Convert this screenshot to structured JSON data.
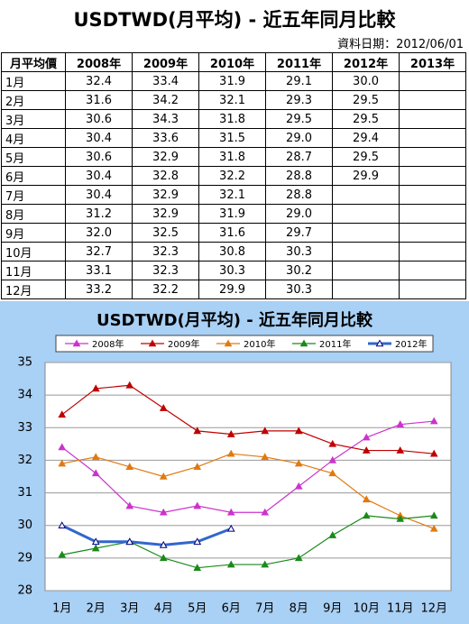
{
  "header": {
    "title": "USDTWD(月平均) - 近五年同月比較",
    "date": "資料日期：2012/06/01"
  },
  "table": {
    "columns": [
      "月平均價",
      "2008年",
      "2009年",
      "2010年",
      "2011年",
      "2012年",
      "2013年"
    ],
    "rows": [
      [
        "1月",
        "32.4",
        "33.4",
        "31.9",
        "29.1",
        "30.0",
        null
      ],
      [
        "2月",
        "31.6",
        "34.2",
        "32.1",
        "29.3",
        "29.5",
        null
      ],
      [
        "3月",
        "30.6",
        "34.3",
        "31.8",
        "29.5",
        "29.5",
        null
      ],
      [
        "4月",
        "30.4",
        "33.6",
        "31.5",
        "29.0",
        "29.4",
        null
      ],
      [
        "5月",
        "30.6",
        "32.9",
        "31.8",
        "28.7",
        "29.5",
        null
      ],
      [
        "6月",
        "30.4",
        "32.8",
        "32.2",
        "28.8",
        "29.9",
        null
      ],
      [
        "7月",
        "30.4",
        "32.9",
        "32.1",
        "28.8",
        null,
        null
      ],
      [
        "8月",
        "31.2",
        "32.9",
        "31.9",
        "29.0",
        null,
        null
      ],
      [
        "9月",
        "32.0",
        "32.5",
        "31.6",
        "29.7",
        null,
        null
      ],
      [
        "10月",
        "32.7",
        "32.3",
        "30.8",
        "30.3",
        null,
        null
      ],
      [
        "11月",
        "33.1",
        "32.3",
        "30.3",
        "30.2",
        null,
        null
      ],
      [
        "12月",
        "33.2",
        "32.2",
        "29.9",
        "30.3",
        null,
        null
      ]
    ]
  },
  "chart_data": {
    "type": "line",
    "title": "USDTWD(月平均) - 近五年同月比較",
    "categories": [
      "1月",
      "2月",
      "3月",
      "4月",
      "5月",
      "6月",
      "7月",
      "8月",
      "9月",
      "10月",
      "11月",
      "12月"
    ],
    "ylim": [
      28,
      35
    ],
    "yticks": [
      28,
      29,
      30,
      31,
      32,
      33,
      34,
      35
    ],
    "grid": true,
    "legend": "top",
    "series": [
      {
        "name": "2008年",
        "color": "#cc33cc",
        "values": [
          32.4,
          31.6,
          30.6,
          30.4,
          30.6,
          30.4,
          30.4,
          31.2,
          32.0,
          32.7,
          33.1,
          33.2
        ]
      },
      {
        "name": "2009年",
        "color": "#c00000",
        "values": [
          33.4,
          34.2,
          34.3,
          33.6,
          32.9,
          32.8,
          32.9,
          32.9,
          32.5,
          32.3,
          32.3,
          32.2
        ]
      },
      {
        "name": "2010年",
        "color": "#e07a10",
        "values": [
          31.9,
          32.1,
          31.8,
          31.5,
          31.8,
          32.2,
          32.1,
          31.9,
          31.6,
          30.8,
          30.3,
          29.9
        ]
      },
      {
        "name": "2011年",
        "color": "#1a8a1a",
        "values": [
          29.1,
          29.3,
          29.5,
          29.0,
          28.7,
          28.8,
          28.8,
          29.0,
          29.7,
          30.3,
          30.2,
          30.3
        ]
      },
      {
        "name": "2012年",
        "color": "#3366cc",
        "values": [
          30.0,
          29.5,
          29.5,
          29.4,
          29.5,
          29.9,
          null,
          null,
          null,
          null,
          null,
          null
        ]
      }
    ]
  }
}
